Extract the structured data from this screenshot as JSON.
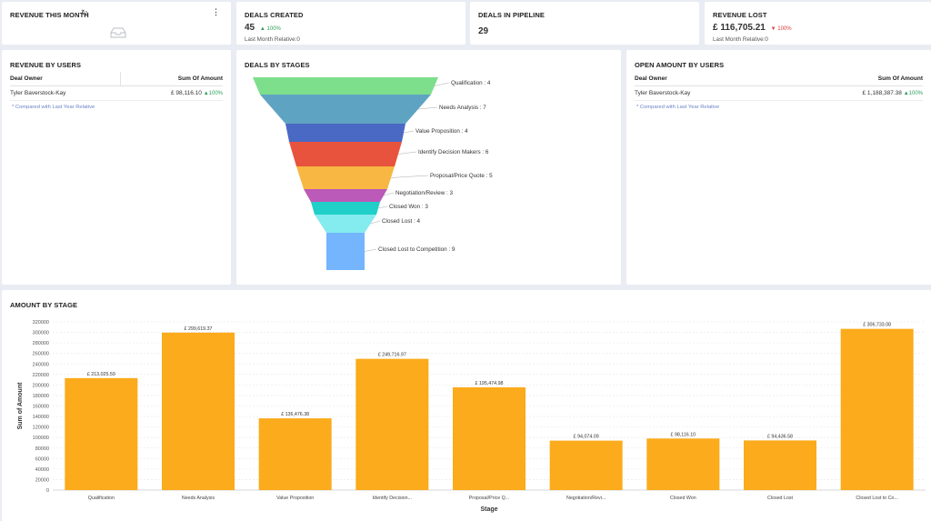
{
  "kpis": {
    "revenue_this_month": {
      "title": "REVENUE THIS MONTH"
    },
    "deals_created": {
      "title": "DEALS CREATED",
      "value": "45",
      "change": "100%",
      "sub": "Last Month Relative:0"
    },
    "deals_in_pipeline": {
      "title": "DEALS IN PIPELINE",
      "value": "29"
    },
    "revenue_lost": {
      "title": "REVENUE LOST",
      "value": "£ 116,705.21",
      "change": "100%",
      "sub": "Last Month Relative:0"
    }
  },
  "revenue_by_users": {
    "title": "REVENUE BY USERS",
    "col_owner": "Deal Owner",
    "col_amount": "Sum Of Amount",
    "row_owner": "Tyler Baverstock-Kay",
    "row_amount": "£ 98,116.10",
    "row_change": "100%",
    "note": "* Compared with Last Year Relative"
  },
  "open_amount_by_users": {
    "title": "OPEN AMOUNT BY USERS",
    "col_owner": "Deal Owner",
    "col_amount": "Sum Of Amount",
    "row_owner": "Tyler Baverstock-Kay",
    "row_amount": "£ 1,188,387.38",
    "row_change": "100%",
    "note": "* Compared with Last Year Relative"
  },
  "deals_by_stages": {
    "title": "DEALS BY STAGES",
    "stages": [
      {
        "label": "Qualification : 4",
        "color": "#7ddf8c"
      },
      {
        "label": "Needs Analysis : 7",
        "color": "#5ea4c2"
      },
      {
        "label": "Value Proposition : 4",
        "color": "#4a69c4"
      },
      {
        "label": "Identify Decision Makers : 6",
        "color": "#e8533d"
      },
      {
        "label": "Proposal/Price Quote : 5",
        "color": "#f7b742"
      },
      {
        "label": "Negotiation/Review : 3",
        "color": "#bb5ab8"
      },
      {
        "label": "Closed Won : 3",
        "color": "#20cfc7"
      },
      {
        "label": "Closed Lost : 4",
        "color": "#84ebee"
      },
      {
        "label": "Closed Lost to Competition : 9",
        "color": "#74b5fd"
      }
    ]
  },
  "chart_data": {
    "type": "bar",
    "title": "AMOUNT BY STAGE",
    "xlabel": "Stage",
    "ylabel": "Sum of Amount",
    "ylim": [
      0,
      320000
    ],
    "yticks": [
      0,
      20000,
      40000,
      60000,
      80000,
      100000,
      120000,
      140000,
      160000,
      180000,
      200000,
      220000,
      240000,
      260000,
      280000,
      300000,
      320000
    ],
    "categories": [
      "Qualification",
      "Needs Analysis",
      "Value Proposition",
      "Identify Decision...",
      "Proposal/Price Q...",
      "Negotiation/Revi...",
      "Closed Won",
      "Closed Lost",
      "Closed Lost to Co..."
    ],
    "values": [
      213025.59,
      299619.37,
      136476.38,
      249716.97,
      195474.98,
      94074.09,
      98116.1,
      94436.58,
      306733.08
    ],
    "value_labels": [
      "£ 213,025.59",
      "£ 299,619.37",
      "£ 136,476.38",
      "£ 249,716.97",
      "£ 195,474.98",
      "£ 94,074.09",
      "£ 98,116.10",
      "£ 94,436.58",
      "£ 306,733.08"
    ],
    "bar_color": "#fbab1b",
    "grid": true
  }
}
